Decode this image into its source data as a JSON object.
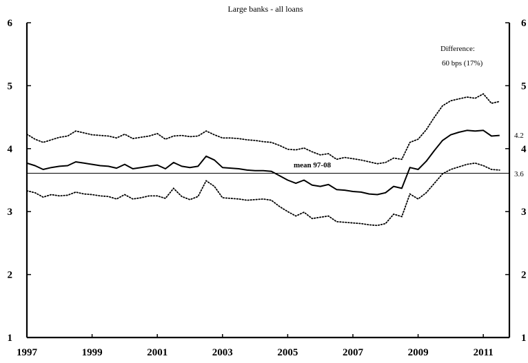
{
  "chart_data": {
    "type": "line",
    "title": "Large banks - all loans",
    "xlabel": "",
    "ylabel": "",
    "xlim": [
      1997,
      2011.8
    ],
    "ylim": [
      1,
      6
    ],
    "x_ticks": [
      1997,
      1999,
      2001,
      2003,
      2005,
      2007,
      2009,
      2011
    ],
    "y_ticks": [
      1,
      2,
      3,
      4,
      5,
      6
    ],
    "y_ticks_right": [
      1,
      2,
      3,
      4,
      5,
      6
    ],
    "grid": false,
    "legend": "none",
    "annotation": {
      "line1": "Difference:",
      "line2": "60 bps  (17%)"
    },
    "reference_line": {
      "label": "mean 97-08",
      "value": 3.61
    },
    "end_labels": [
      "4.2",
      "3.6"
    ],
    "series": [
      {
        "style": "solid",
        "x": [
          1997.0,
          1997.25,
          1997.5,
          1997.75,
          1998.0,
          1998.25,
          1998.5,
          1998.75,
          1999.0,
          1999.25,
          1999.5,
          1999.75,
          2000.0,
          2000.25,
          2000.5,
          2000.75,
          2001.0,
          2001.25,
          2001.5,
          2001.75,
          2002.0,
          2002.25,
          2002.5,
          2002.75,
          2003.0,
          2003.25,
          2003.5,
          2003.75,
          2004.0,
          2004.25,
          2004.5,
          2004.75,
          2005.0,
          2005.25,
          2005.5,
          2005.75,
          2006.0,
          2006.25,
          2006.5,
          2006.75,
          2007.0,
          2007.25,
          2007.5,
          2007.75,
          2008.0,
          2008.25,
          2008.5,
          2008.75,
          2009.0,
          2009.25,
          2009.5,
          2009.75,
          2010.0,
          2010.25,
          2010.5,
          2010.75,
          2011.0,
          2011.25,
          2011.5
        ],
        "y": [
          3.77,
          3.73,
          3.67,
          3.7,
          3.72,
          3.73,
          3.79,
          3.77,
          3.75,
          3.73,
          3.72,
          3.69,
          3.75,
          3.68,
          3.7,
          3.72,
          3.74,
          3.68,
          3.78,
          3.72,
          3.7,
          3.72,
          3.88,
          3.82,
          3.7,
          3.69,
          3.68,
          3.66,
          3.65,
          3.65,
          3.64,
          3.57,
          3.5,
          3.45,
          3.5,
          3.42,
          3.4,
          3.43,
          3.35,
          3.34,
          3.32,
          3.31,
          3.28,
          3.27,
          3.3,
          3.4,
          3.37,
          3.7,
          3.67,
          3.8,
          3.97,
          4.13,
          4.22,
          4.26,
          4.29,
          4.28,
          4.29,
          4.2,
          4.21
        ]
      },
      {
        "style": "dotted",
        "x": [
          1997.0,
          1997.25,
          1997.5,
          1997.75,
          1998.0,
          1998.25,
          1998.5,
          1998.75,
          1999.0,
          1999.25,
          1999.5,
          1999.75,
          2000.0,
          2000.25,
          2000.5,
          2000.75,
          2001.0,
          2001.25,
          2001.5,
          2001.75,
          2002.0,
          2002.25,
          2002.5,
          2002.75,
          2003.0,
          2003.25,
          2003.5,
          2003.75,
          2004.0,
          2004.25,
          2004.5,
          2004.75,
          2005.0,
          2005.25,
          2005.5,
          2005.75,
          2006.0,
          2006.25,
          2006.5,
          2006.75,
          2007.0,
          2007.25,
          2007.5,
          2007.75,
          2008.0,
          2008.25,
          2008.5,
          2008.75,
          2009.0,
          2009.25,
          2009.5,
          2009.75,
          2010.0,
          2010.25,
          2010.5,
          2010.75,
          2011.0,
          2011.25,
          2011.5
        ],
        "y": [
          4.23,
          4.15,
          4.1,
          4.14,
          4.18,
          4.2,
          4.28,
          4.25,
          4.22,
          4.21,
          4.2,
          4.17,
          4.23,
          4.16,
          4.18,
          4.2,
          4.24,
          4.15,
          4.2,
          4.21,
          4.19,
          4.2,
          4.28,
          4.22,
          4.17,
          4.17,
          4.16,
          4.14,
          4.13,
          4.11,
          4.1,
          4.05,
          3.99,
          3.98,
          4.01,
          3.95,
          3.9,
          3.92,
          3.83,
          3.86,
          3.84,
          3.82,
          3.79,
          3.76,
          3.78,
          3.85,
          3.83,
          4.1,
          4.15,
          4.3,
          4.5,
          4.68,
          4.76,
          4.79,
          4.82,
          4.8,
          4.87,
          4.72,
          4.75
        ]
      },
      {
        "style": "dotted",
        "x": [
          1997.0,
          1997.25,
          1997.5,
          1997.75,
          1998.0,
          1998.25,
          1998.5,
          1998.75,
          1999.0,
          1999.25,
          1999.5,
          1999.75,
          2000.0,
          2000.25,
          2000.5,
          2000.75,
          2001.0,
          2001.25,
          2001.5,
          2001.75,
          2002.0,
          2002.25,
          2002.5,
          2002.75,
          2003.0,
          2003.25,
          2003.5,
          2003.75,
          2004.0,
          2004.25,
          2004.5,
          2004.75,
          2005.0,
          2005.25,
          2005.5,
          2005.75,
          2006.0,
          2006.25,
          2006.5,
          2006.75,
          2007.0,
          2007.25,
          2007.5,
          2007.75,
          2008.0,
          2008.25,
          2008.5,
          2008.75,
          2009.0,
          2009.25,
          2009.5,
          2009.75,
          2010.0,
          2010.25,
          2010.5,
          2010.75,
          2011.0,
          2011.25,
          2011.5
        ],
        "y": [
          3.33,
          3.3,
          3.23,
          3.27,
          3.25,
          3.26,
          3.31,
          3.28,
          3.27,
          3.25,
          3.24,
          3.2,
          3.27,
          3.2,
          3.22,
          3.25,
          3.25,
          3.21,
          3.37,
          3.24,
          3.19,
          3.24,
          3.49,
          3.4,
          3.22,
          3.21,
          3.2,
          3.18,
          3.19,
          3.2,
          3.18,
          3.08,
          3.0,
          2.93,
          2.99,
          2.89,
          2.91,
          2.93,
          2.84,
          2.83,
          2.82,
          2.81,
          2.79,
          2.78,
          2.81,
          2.96,
          2.92,
          3.28,
          3.2,
          3.3,
          3.45,
          3.6,
          3.67,
          3.71,
          3.75,
          3.77,
          3.73,
          3.67,
          3.66
        ]
      }
    ]
  }
}
